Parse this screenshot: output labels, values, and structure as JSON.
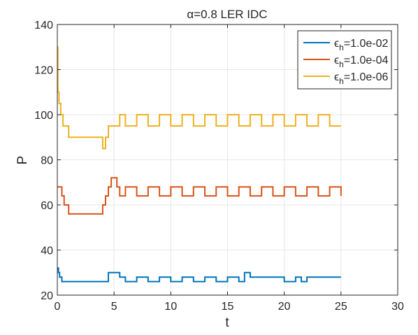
{
  "chart_data": {
    "type": "line",
    "title": "α=0.8   LER IDC",
    "xlabel": "t",
    "ylabel": "P",
    "xlim": [
      0,
      30
    ],
    "ylim": [
      20,
      140
    ],
    "xticks": [
      0,
      5,
      10,
      15,
      20,
      25,
      30
    ],
    "yticks": [
      20,
      40,
      60,
      80,
      100,
      120,
      140
    ],
    "grid": true,
    "legend_position": "top-right",
    "series": [
      {
        "name": "ϵh=1.0e-02",
        "legend_prefix": "ϵ",
        "legend_sub": "h",
        "legend_suffix": "=1.0e-02",
        "color": "#0072BD",
        "step": true,
        "x": [
          0,
          0.1,
          0.2,
          0.4,
          4.5,
          5.5,
          6,
          7,
          8,
          9,
          10,
          11,
          12,
          13,
          14,
          15,
          16,
          16.5,
          17,
          20,
          21,
          21.5,
          22,
          25
        ],
        "y": [
          32,
          30,
          28,
          26,
          30,
          28,
          26,
          28,
          26,
          28,
          26,
          28,
          26,
          28,
          26,
          28,
          26,
          30,
          28,
          26,
          28,
          26,
          28,
          28
        ]
      },
      {
        "name": "ϵh=1.0e-04",
        "legend_prefix": "ϵ",
        "legend_sub": "h",
        "legend_suffix": "=1.0e-04",
        "color": "#D95319",
        "step": true,
        "x": [
          0,
          0.4,
          0.6,
          1,
          4,
          4.25,
          4.5,
          4.75,
          5.25,
          5.5,
          6,
          7,
          8,
          9,
          10,
          11,
          12,
          13,
          14,
          15,
          16,
          17,
          18,
          19,
          20,
          21,
          22,
          23,
          24,
          25
        ],
        "y": [
          68,
          64,
          60,
          56,
          60,
          64,
          68,
          72,
          68,
          64,
          68,
          64,
          68,
          64,
          68,
          64,
          68,
          64,
          68,
          64,
          68,
          64,
          68,
          64,
          68,
          64,
          68,
          64,
          68,
          64
        ]
      },
      {
        "name": "ϵh=1.0e-06",
        "legend_prefix": "ϵ",
        "legend_sub": "h",
        "legend_suffix": "=1.0e-06",
        "color": "#EDB120",
        "step": true,
        "x": [
          0,
          0.05,
          0.15,
          0.3,
          0.5,
          1,
          4,
          4.25,
          4.5,
          5.5,
          6,
          7,
          8,
          9,
          10,
          11,
          12,
          13,
          14,
          15,
          16,
          17,
          18,
          19,
          20,
          21,
          22,
          23,
          24,
          25
        ],
        "y": [
          130,
          110,
          105,
          100,
          95,
          90,
          85,
          90,
          95,
          100,
          95,
          100,
          95,
          100,
          95,
          100,
          95,
          100,
          95,
          100,
          95,
          100,
          95,
          100,
          95,
          100,
          95,
          100,
          95,
          95
        ]
      }
    ]
  }
}
